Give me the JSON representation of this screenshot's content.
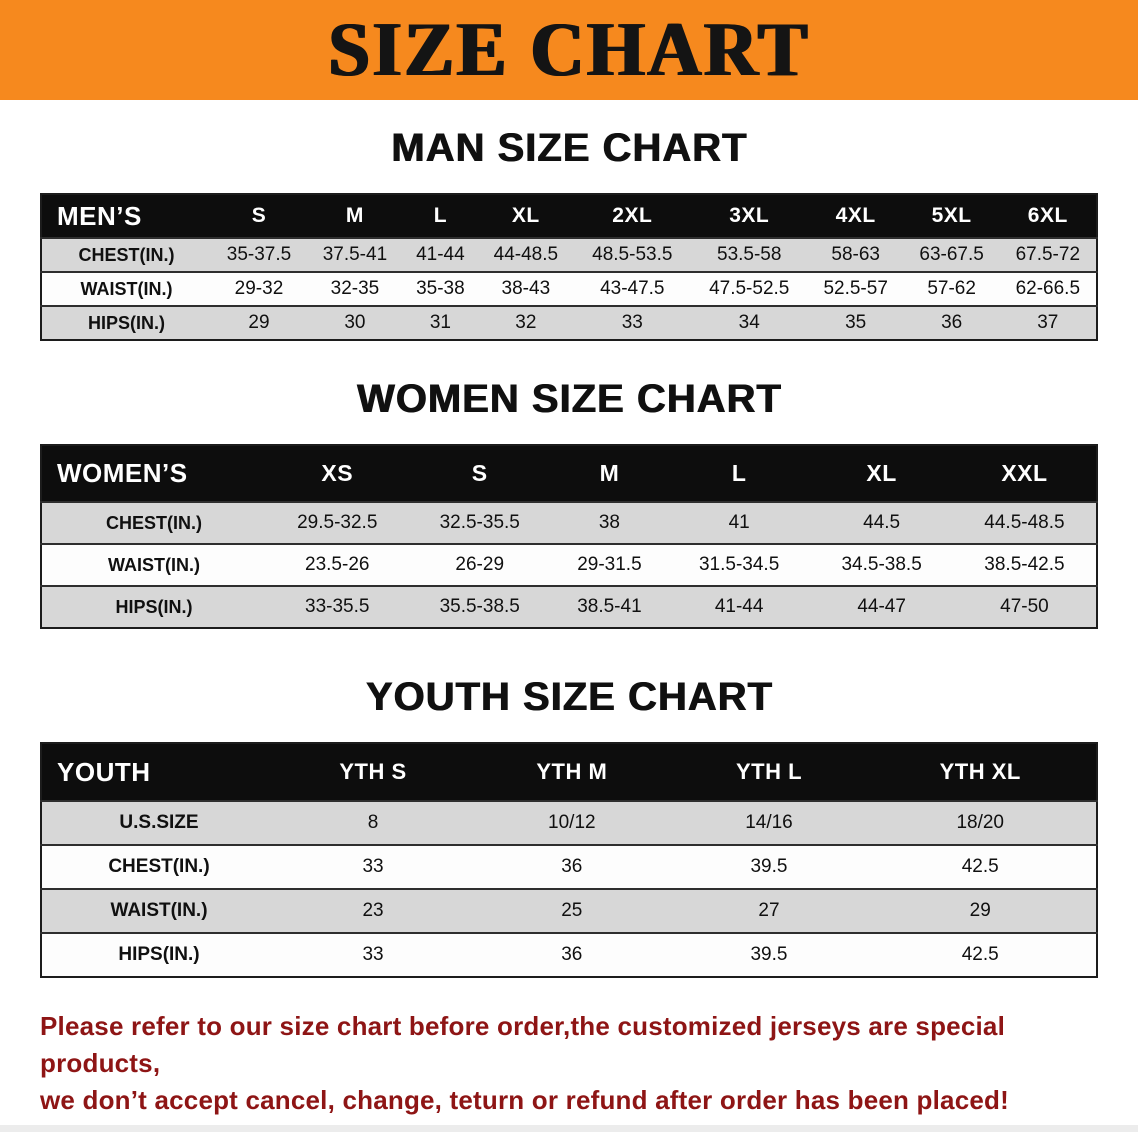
{
  "banner": {
    "title": "SIZE CHART",
    "bg_color": "#F6891E"
  },
  "sections": [
    {
      "id": "men",
      "heading": "MAN SIZE CHART",
      "table": {
        "header": [
          "MEN’S",
          "S",
          "M",
          "L",
          "XL",
          "2XL",
          "3XL",
          "4XL",
          "5XL",
          "6XL"
        ],
        "rows": [
          {
            "label": "CHEST(IN.)",
            "values": [
              "35-37.5",
              "37.5-41",
              "41-44",
              "44-48.5",
              "48.5-53.5",
              "53.5-58",
              "58-63",
              "63-67.5",
              "67.5-72"
            ]
          },
          {
            "label": "WAIST(IN.)",
            "values": [
              "29-32",
              "32-35",
              "35-38",
              "38-43",
              "43-47.5",
              "47.5-52.5",
              "52.5-57",
              "57-62",
              "62-66.5"
            ]
          },
          {
            "label": "HIPS(IN.)",
            "values": [
              "29",
              "30",
              "31",
              "32",
              "33",
              "34",
              "35",
              "36",
              "37"
            ]
          }
        ]
      }
    },
    {
      "id": "women",
      "heading": "WOMEN SIZE CHART",
      "table": {
        "header": [
          "WOMEN’S",
          "XS",
          "S",
          "M",
          "L",
          "XL",
          "XXL"
        ],
        "rows": [
          {
            "label": "CHEST(IN.)",
            "values": [
              "29.5-32.5",
              "32.5-35.5",
              "38",
              "41",
              "44.5",
              "44.5-48.5"
            ]
          },
          {
            "label": "WAIST(IN.)",
            "values": [
              "23.5-26",
              "26-29",
              "29-31.5",
              "31.5-34.5",
              "34.5-38.5",
              "38.5-42.5"
            ]
          },
          {
            "label": "HIPS(IN.)",
            "values": [
              "33-35.5",
              "35.5-38.5",
              "38.5-41",
              "41-44",
              "44-47",
              "47-50"
            ]
          }
        ]
      }
    },
    {
      "id": "youth",
      "heading": "YOUTH SIZE CHART",
      "table": {
        "header": [
          "YOUTH",
          "YTH S",
          "YTH M",
          "YTH L",
          "YTH XL"
        ],
        "rows": [
          {
            "label": "U.S.SIZE",
            "values": [
              "8",
              "10/12",
              "14/16",
              "18/20"
            ]
          },
          {
            "label": "CHEST(IN.)",
            "values": [
              "33",
              "36",
              "39.5",
              "42.5"
            ]
          },
          {
            "label": "WAIST(IN.)",
            "values": [
              "23",
              "25",
              "27",
              "29"
            ]
          },
          {
            "label": "HIPS(IN.)",
            "values": [
              "33",
              "36",
              "39.5",
              "42.5"
            ]
          }
        ]
      }
    }
  ],
  "footer": {
    "lines": [
      "Please refer to our size chart before order,the customized jerseys are special products,",
      "we don’t accept cancel, change, teturn or refund after order has been placed!"
    ],
    "color": "#8e1515"
  }
}
